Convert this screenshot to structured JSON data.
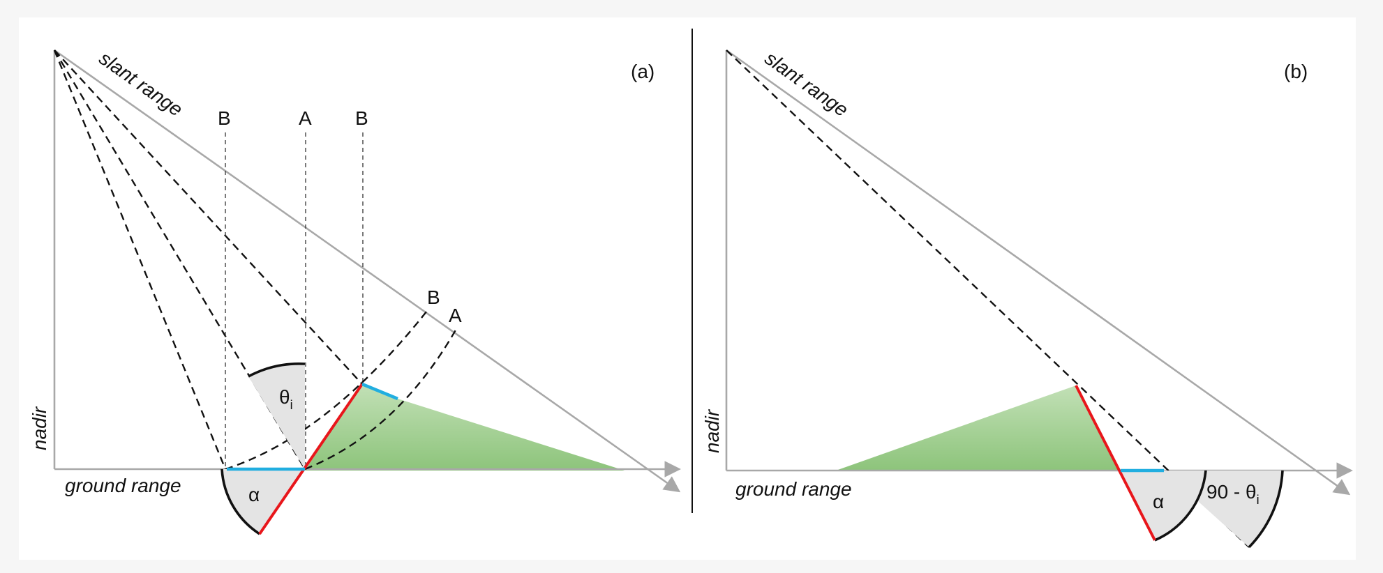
{
  "panel_a": {
    "tag": "(a)",
    "slant_range_label": "slant range",
    "nadir_label": "nadir",
    "ground_range_label": "ground range",
    "top_labels": [
      "B",
      "A",
      "B"
    ],
    "arc_labels": [
      "B",
      "A"
    ],
    "incidence_angle_symbol": "θ",
    "incidence_angle_subscript": "i",
    "slope_angle_symbol": "α"
  },
  "panel_b": {
    "tag": "(b)",
    "slant_range_label": "slant range",
    "nadir_label": "nadir",
    "ground_range_label": "ground range",
    "slope_angle_symbol": "α",
    "complement_angle_text": "90 - θ",
    "complement_angle_subscript": "i"
  },
  "colors": {
    "foreslope": "#e8161b",
    "ground_segment": "#21aee0",
    "shadow_fill": "#8dc47b",
    "axis": "#a8a8a8"
  }
}
